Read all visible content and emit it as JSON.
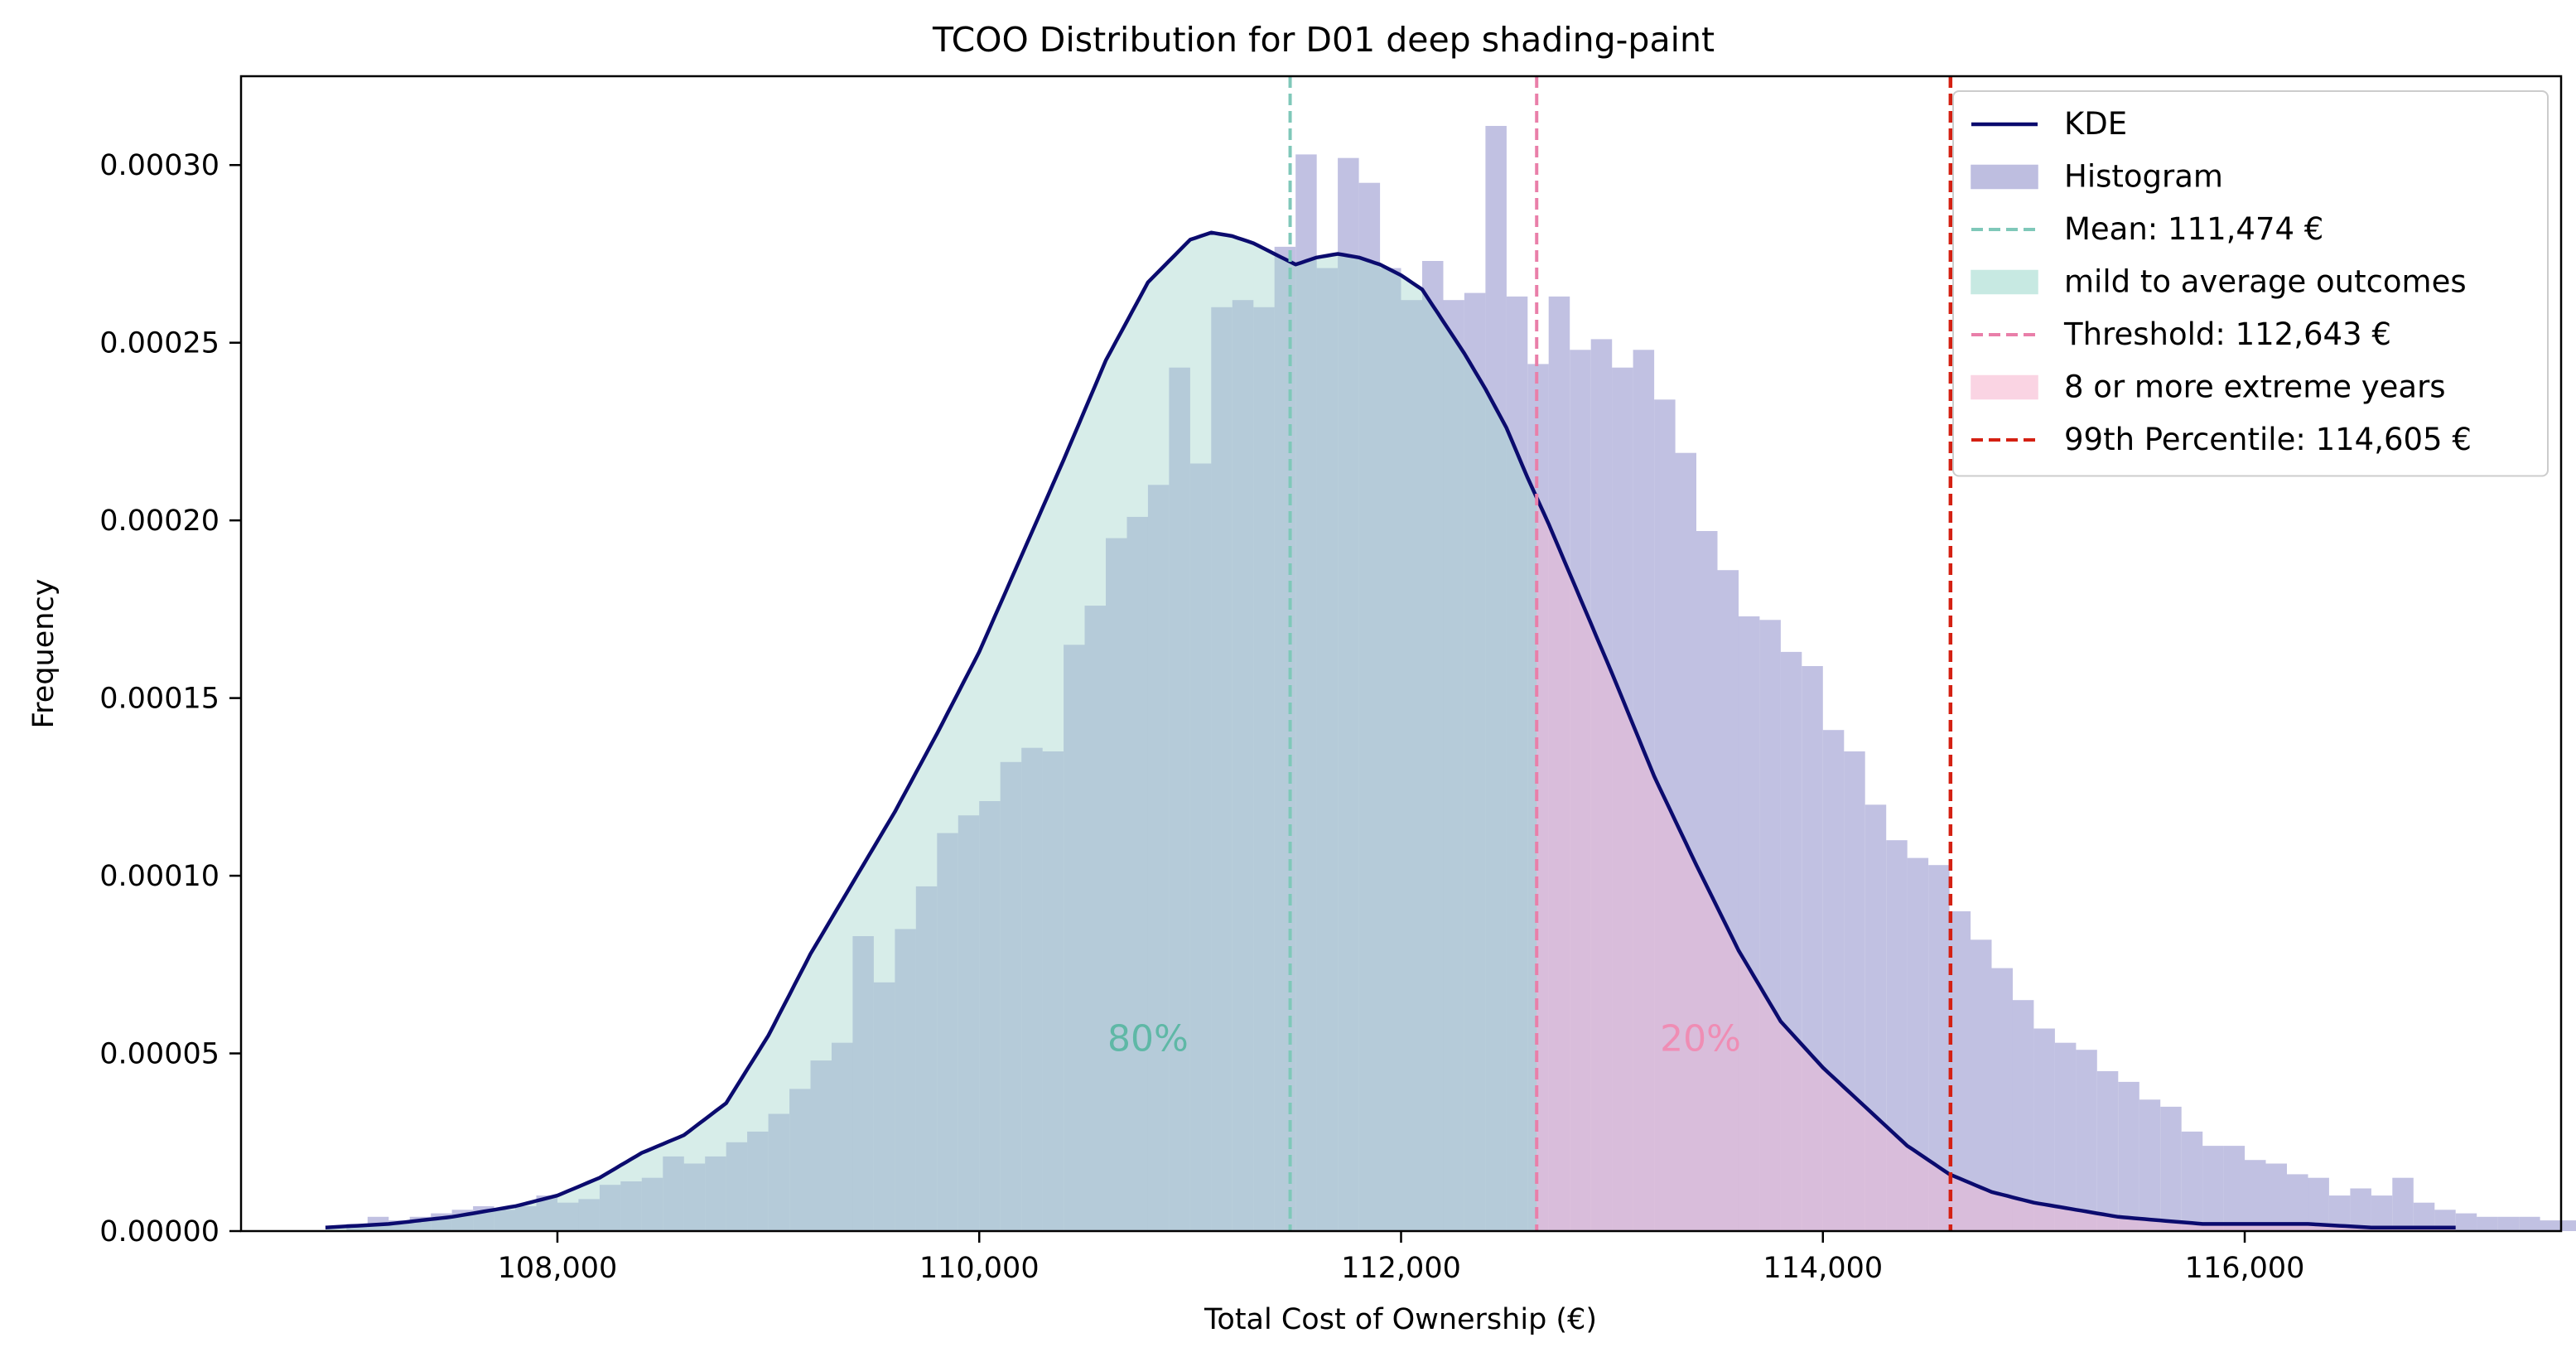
{
  "chart_data": {
    "type": "histogram",
    "title": "TCOO Distribution for D01 deep shading-paint",
    "xlabel": "Total Cost of Ownership (€)",
    "ylabel": "Frequency",
    "xlim": [
      106500,
      117500
    ],
    "ylim": [
      0,
      0.000325
    ],
    "x_ticks": [
      108000,
      110000,
      112000,
      114000,
      116000
    ],
    "x_tick_labels": [
      "108,000",
      "110,000",
      "112,000",
      "114,000",
      "116,000"
    ],
    "y_ticks": [
      0,
      5e-05,
      0.0001,
      0.00015,
      0.0002,
      0.00025,
      0.0003
    ],
    "y_tick_labels": [
      "0.00000",
      "0.00005",
      "0.00010",
      "0.00015",
      "0.00020",
      "0.00025",
      "0.00030"
    ],
    "grid": false,
    "legend_position": "upper right",
    "colors": {
      "kde": "#0b0b6e",
      "histogram": "#bebee0",
      "mild_fill": "#a7d8cf",
      "extreme_fill": "#f7b9d2",
      "mean_line": "#7fc8b9",
      "threshold_line": "#e97fa9",
      "p99_line": "#d42012",
      "label_80": "#5fb8a6",
      "label_20": "#ef8db4"
    },
    "histogram": {
      "bin_start": 107000,
      "bin_width": 100,
      "values": [
        2e-06,
        4e-06,
        3e-06,
        4e-06,
        5e-06,
        6e-06,
        7e-06,
        6e-06,
        7e-06,
        1e-05,
        8e-06,
        9e-06,
        1.3e-05,
        1.4e-05,
        1.5e-05,
        2.1e-05,
        1.9e-05,
        2.1e-05,
        2.5e-05,
        2.8e-05,
        3.3e-05,
        4e-05,
        4.8e-05,
        5.3e-05,
        8.3e-05,
        7e-05,
        8.5e-05,
        9.7e-05,
        0.000112,
        0.000117,
        0.000121,
        0.000132,
        0.000136,
        0.000135,
        0.000165,
        0.000176,
        0.000195,
        0.000201,
        0.00021,
        0.000243,
        0.000216,
        0.00026,
        0.000262,
        0.00026,
        0.000277,
        0.000303,
        0.000271,
        0.000302,
        0.000295,
        0.000271,
        0.000262,
        0.000273,
        0.000262,
        0.000264,
        0.000311,
        0.000263,
        0.000244,
        0.000263,
        0.000248,
        0.000251,
        0.000243,
        0.000248,
        0.000234,
        0.000219,
        0.000197,
        0.000186,
        0.000173,
        0.000172,
        0.000163,
        0.000159,
        0.000141,
        0.000135,
        0.00012,
        0.00011,
        0.000105,
        0.000103,
        9e-05,
        8.2e-05,
        7.4e-05,
        6.5e-05,
        5.7e-05,
        5.3e-05,
        5.1e-05,
        4.5e-05,
        4.2e-05,
        3.7e-05,
        3.5e-05,
        2.8e-05,
        2.4e-05,
        2.4e-05,
        2e-05,
        1.9e-05,
        1.6e-05,
        1.5e-05,
        1e-05,
        1.2e-05,
        1e-05,
        1.5e-05,
        8e-06,
        6e-06,
        5e-06,
        4e-06,
        4e-06,
        4e-06,
        3e-06,
        3e-06,
        2e-06,
        3e-06,
        2e-06,
        2e-06
      ]
    },
    "kde": {
      "x": [
        106900,
        107200,
        107500,
        107800,
        108000,
        108200,
        108400,
        108600,
        108800,
        109000,
        109200,
        109400,
        109600,
        109800,
        110000,
        110200,
        110400,
        110600,
        110800,
        111000,
        111100,
        111200,
        111300,
        111400,
        111500,
        111600,
        111700,
        111800,
        111900,
        112000,
        112100,
        112200,
        112300,
        112400,
        112500,
        112600,
        112700,
        112800,
        113000,
        113200,
        113400,
        113600,
        113800,
        114000,
        114200,
        114400,
        114600,
        114800,
        115000,
        115200,
        115400,
        115600,
        115800,
        116000,
        116300,
        116600,
        117000
      ],
      "y": [
        1e-06,
        2e-06,
        4e-06,
        7e-06,
        1e-05,
        1.5e-05,
        2.2e-05,
        2.7e-05,
        3.6e-05,
        5.5e-05,
        7.8e-05,
        9.8e-05,
        0.000118,
        0.00014,
        0.000163,
        0.00019,
        0.000217,
        0.000245,
        0.000267,
        0.000279,
        0.000281,
        0.00028,
        0.000278,
        0.000275,
        0.000272,
        0.000274,
        0.000275,
        0.000274,
        0.000272,
        0.000269,
        0.000265,
        0.000256,
        0.000247,
        0.000237,
        0.000226,
        0.000212,
        0.000199,
        0.000185,
        0.000157,
        0.000128,
        0.000103,
        7.9e-05,
        5.9e-05,
        4.6e-05,
        3.5e-05,
        2.4e-05,
        1.6e-05,
        1.1e-05,
        8e-06,
        6e-06,
        4e-06,
        3e-06,
        2e-06,
        2e-06,
        2e-06,
        1e-06,
        1e-06
      ]
    },
    "lines": {
      "mean": 111474,
      "threshold": 112643,
      "p99": 114605
    },
    "annotations": [
      {
        "text": "80%",
        "x": 110800,
        "y": 5.35e-05
      },
      {
        "text": "20%",
        "x": 113420,
        "y": 5.35e-05
      }
    ],
    "legend": [
      {
        "label": "KDE",
        "kind": "line",
        "color": "#0b0b6e"
      },
      {
        "label": "Histogram",
        "kind": "patch",
        "color": "#bebee0"
      },
      {
        "label": "Mean: 111,474 €",
        "kind": "dashed",
        "color": "#7fc8b9"
      },
      {
        "label": "mild to average outcomes",
        "kind": "patch",
        "color": "#c7e9e2"
      },
      {
        "label": "Threshold: 112,643 €",
        "kind": "dashed",
        "color": "#e97fa9"
      },
      {
        "label": "8 or more extreme years",
        "kind": "patch",
        "color": "#fad4e3"
      },
      {
        "label": "99th Percentile: 114,605 €",
        "kind": "dashed",
        "color": "#d42012"
      }
    ]
  }
}
